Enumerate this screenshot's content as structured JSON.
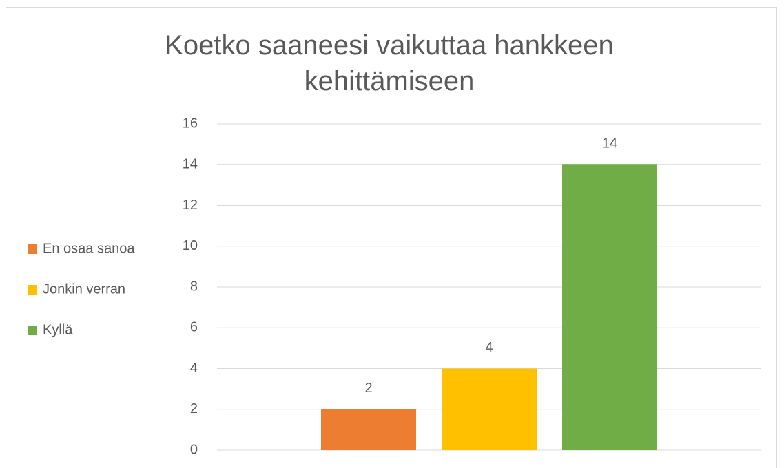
{
  "chart_data": {
    "type": "bar",
    "title": "Koetko saaneesi vaikuttaa hankkeen kehittämiseen",
    "categories": [
      null
    ],
    "series": [
      {
        "name": "En osaa sanoa",
        "color": "#ED7D31",
        "values": [
          2
        ]
      },
      {
        "name": "Jonkin verran",
        "color": "#FFC000",
        "values": [
          4
        ]
      },
      {
        "name": "Kyllä",
        "color": "#70AD47",
        "values": [
          14
        ]
      }
    ],
    "ylim": [
      0,
      16
    ],
    "yticks": [
      0,
      2,
      4,
      6,
      8,
      10,
      12,
      14,
      16
    ],
    "grid": true,
    "legend": "left"
  }
}
